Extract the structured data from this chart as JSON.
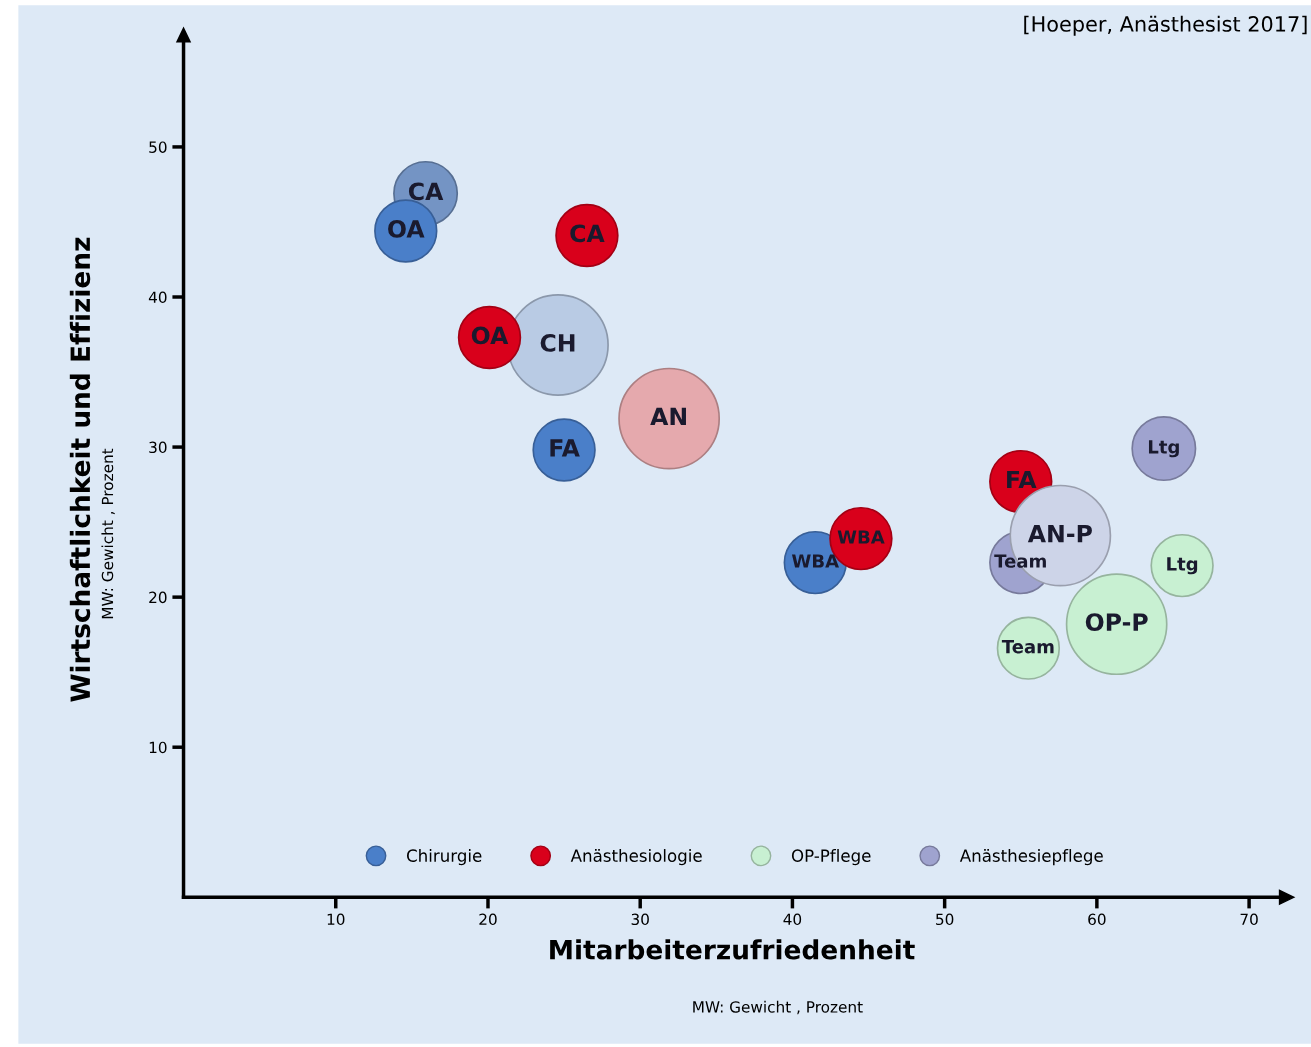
{
  "chart_data": {
    "type": "bubble",
    "xlabel": "Mitarbeiterzufriedenheit",
    "ylabel": "Wirtschaftlichkeit und Effizienz",
    "xlim": [
      0,
      72
    ],
    "ylim": [
      0,
      57
    ],
    "xticks": [
      10,
      20,
      30,
      40,
      50,
      60,
      70
    ],
    "yticks": [
      10,
      20,
      30,
      40,
      50
    ],
    "grid": false,
    "legend": "bottom",
    "series": [
      {
        "name": "Chirurgie",
        "color": "#4a7fc9",
        "x": [
          15.9,
          14.6,
          25.0,
          41.5,
          24.6
        ],
        "values": [
          46.9,
          44.4,
          29.8,
          22.3,
          36.8
        ],
        "sizes": [
          0.4,
          0.38,
          0.38,
          0.38,
          1
        ],
        "colors": [
          "#7494c4",
          "#4a7fc9",
          "#4a7fc9",
          "#4a7fc9",
          "#b9cbe4"
        ]
      },
      {
        "name": "Anästhesiologie",
        "color": "#d9001b",
        "x": [
          26.5,
          20.1,
          55.0,
          44.5,
          31.9
        ],
        "values": [
          44.1,
          37.3,
          27.7,
          23.9,
          31.9
        ],
        "sizes": [
          0.38,
          0.38,
          0.38,
          0.38,
          1
        ],
        "colors": [
          "#d9001b",
          "#d9001b",
          "#d9001b",
          "#d9001b",
          "#e5a9ad"
        ]
      },
      {
        "name": "OP-Pflege",
        "color": "#c8f0d2",
        "x": [
          65.6,
          55.5,
          61.3
        ],
        "values": [
          22.1,
          16.6,
          18.2
        ],
        "sizes": [
          0.38,
          0.38,
          1
        ],
        "colors": [
          "#c8f0d2",
          "#c8f0d2",
          "#c8f0d2"
        ]
      },
      {
        "name": "Anästhesiepflege",
        "color": "#9fa3cf",
        "x": [
          64.4,
          55.0,
          57.6
        ],
        "values": [
          29.9,
          22.3,
          24.1
        ],
        "sizes": [
          0.4,
          0.38,
          1
        ],
        "colors": [
          "#9fa3cf",
          "#9fa3cf",
          "#cdd4e8"
        ]
      }
    ],
    "annotations": [
      "[Hoeper, Anästhesist 2017]",
      "MW: Gewicht , Prozent",
      "MW: Gewicht , Prozent",
      {
        "text": "CA",
        "x": 15.9,
        "y": 46.9
      },
      {
        "text": "OA",
        "x": 14.6,
        "y": 44.4
      },
      {
        "text": "FA",
        "x": 25.0,
        "y": 29.8
      },
      {
        "text": "WBA",
        "x": 41.5,
        "y": 22.3
      },
      {
        "text": "CH",
        "x": 24.6,
        "y": 36.8
      },
      {
        "text": "CA",
        "x": 26.5,
        "y": 44.1
      },
      {
        "text": "OA",
        "x": 20.1,
        "y": 37.3
      },
      {
        "text": "FA",
        "x": 55.0,
        "y": 27.7
      },
      {
        "text": "WBA",
        "x": 44.5,
        "y": 23.9
      },
      {
        "text": "AN",
        "x": 31.9,
        "y": 31.9
      },
      {
        "text": "Ltg",
        "x": 65.6,
        "y": 22.1
      },
      {
        "text": "Team",
        "x": 55.5,
        "y": 16.6
      },
      {
        "text": "OP-P",
        "x": 61.3,
        "y": 18.2
      },
      {
        "text": "Ltg",
        "x": 64.4,
        "y": 29.9
      },
      {
        "text": "Team",
        "x": 55.0,
        "y": 22.3
      },
      {
        "text": "AN-P",
        "x": 57.6,
        "y": 24.1
      }
    ]
  }
}
